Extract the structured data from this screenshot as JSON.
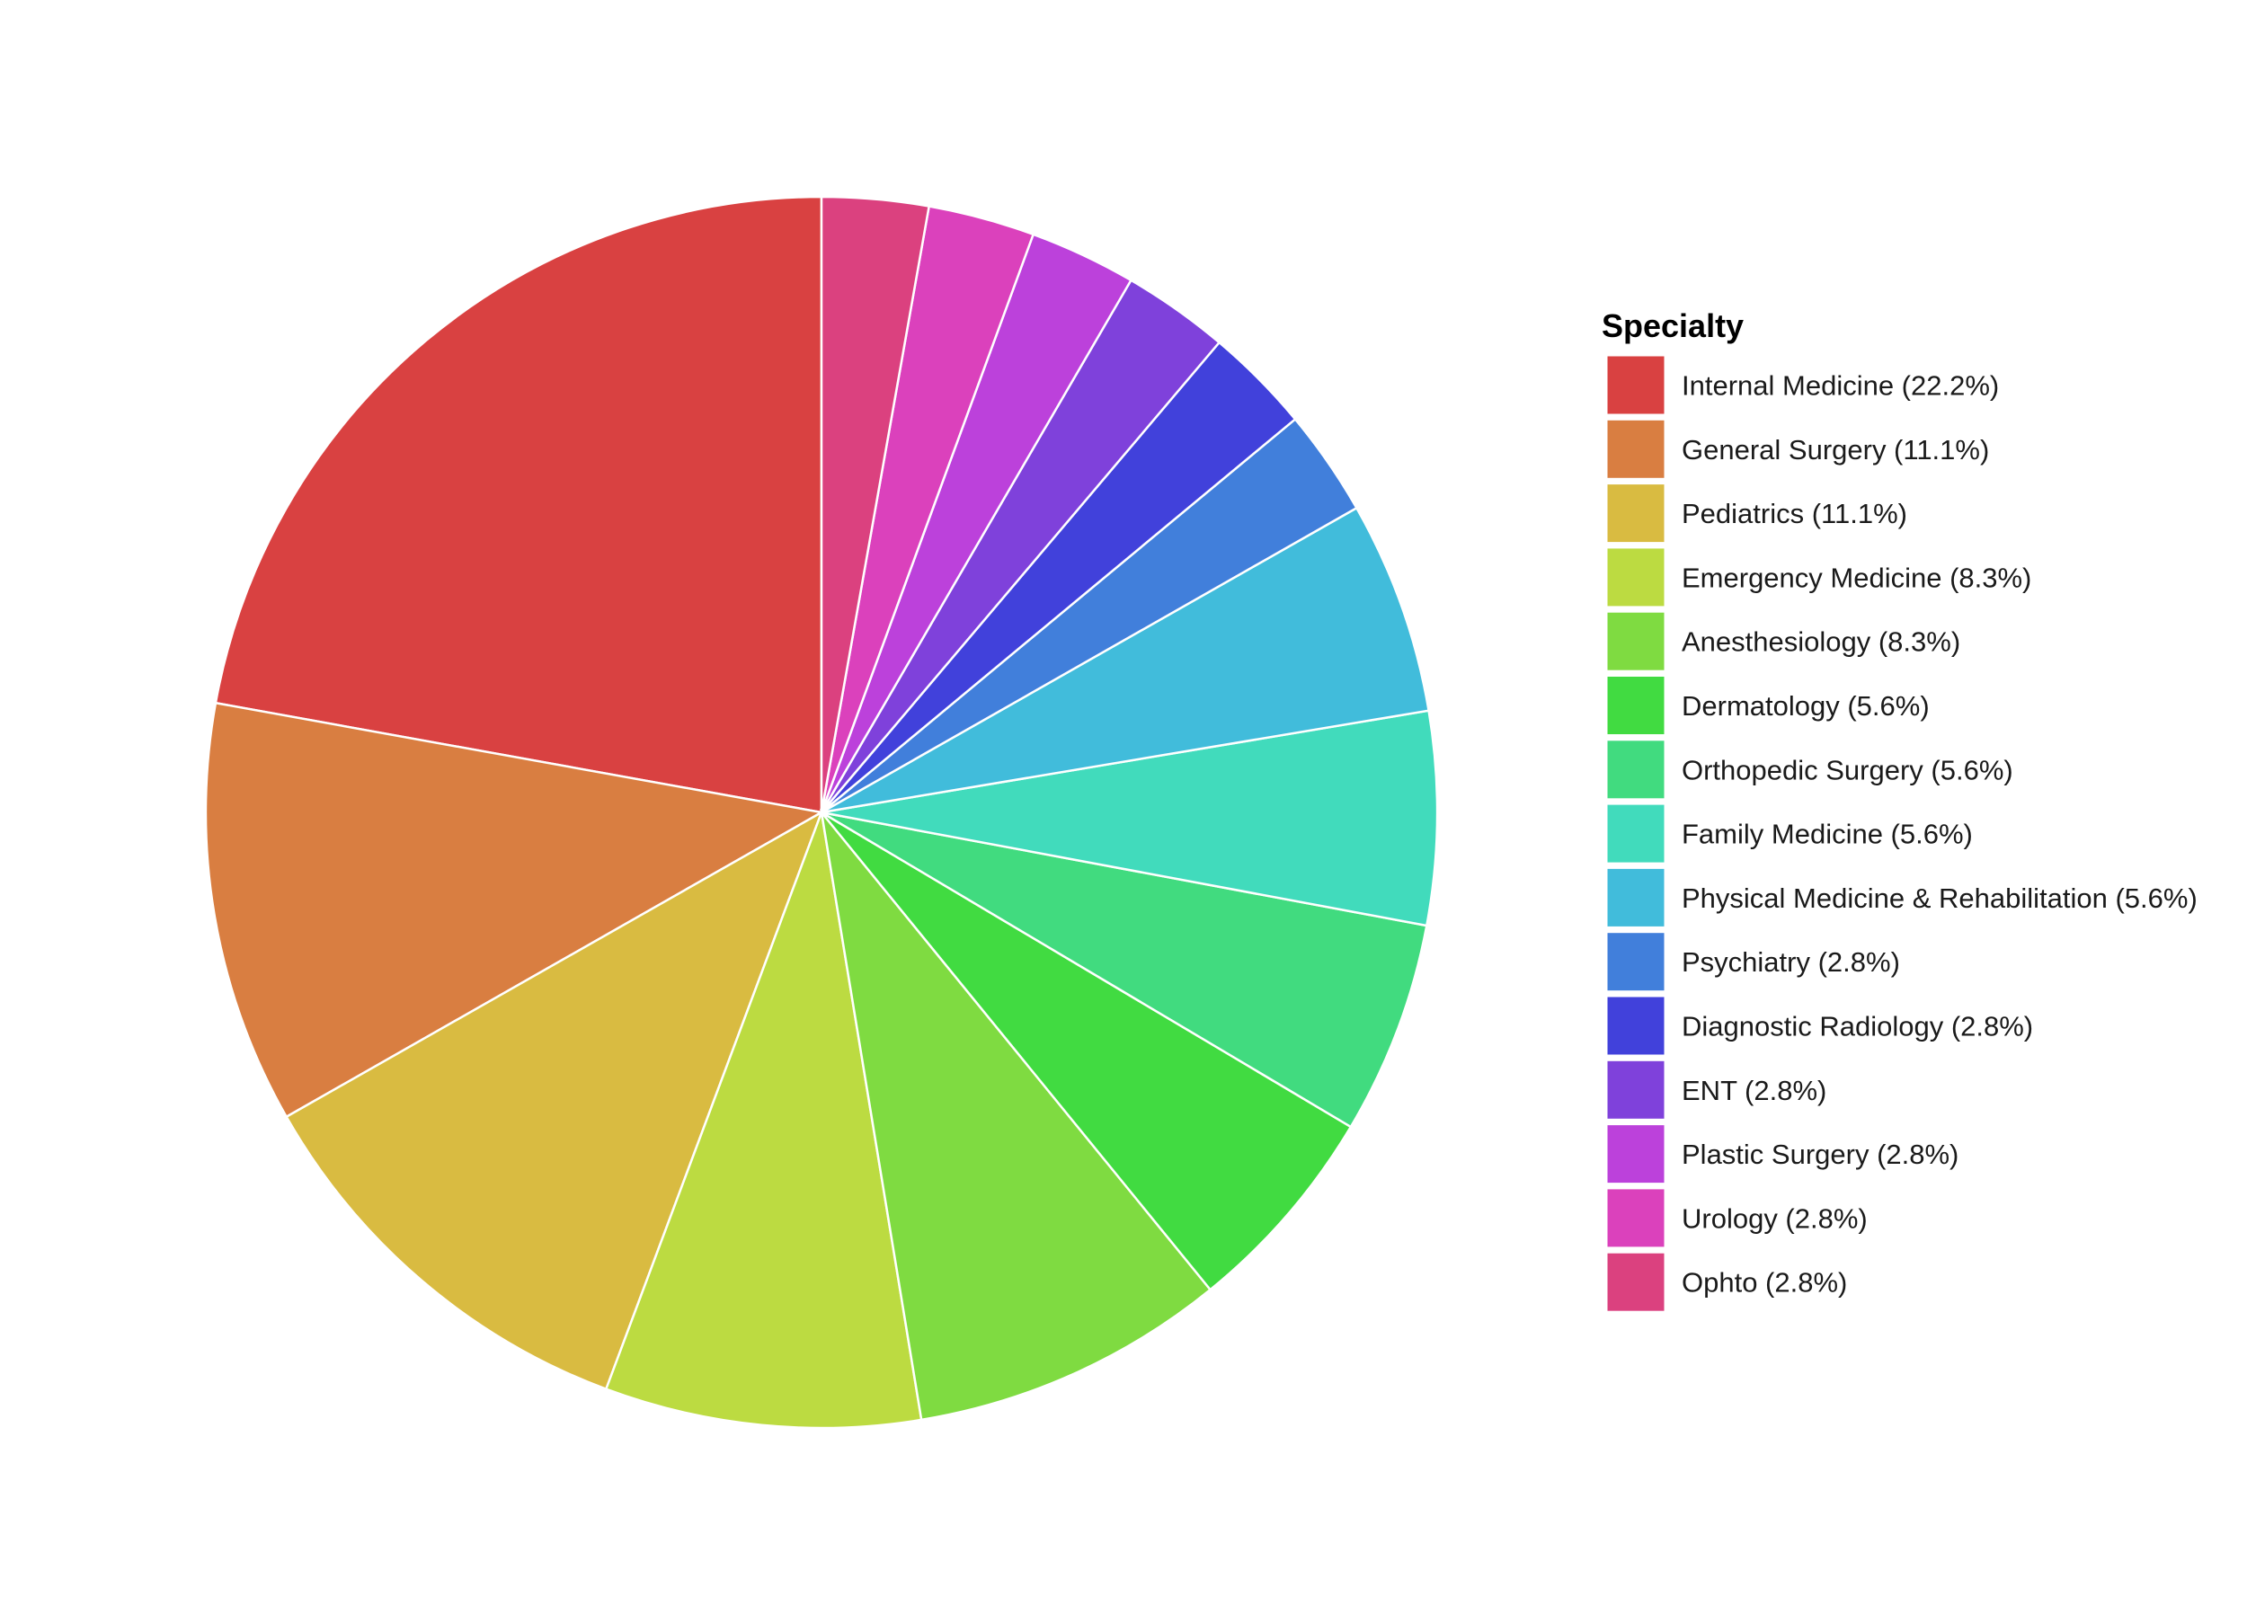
{
  "chart_data": {
    "type": "pie",
    "legend": {
      "title": "Specialty",
      "placement": "right"
    },
    "slices": [
      {
        "label": "Internal Medicine (22.2%)",
        "category": "Internal Medicine",
        "value": 22.2,
        "color": "#d94141"
      },
      {
        "label": "General Surgery (11.1%)",
        "category": "General Surgery",
        "value": 11.1,
        "color": "#d97e41"
      },
      {
        "label": "Pediatrics (11.1%)",
        "category": "Pediatrics",
        "value": 11.1,
        "color": "#d9bb41"
      },
      {
        "label": "Emergency Medicine (8.3%)",
        "category": "Emergency Medicine",
        "value": 8.3,
        "color": "#bcdb41"
      },
      {
        "label": "Anesthesiology (8.3%)",
        "category": "Anesthesiology",
        "value": 8.3,
        "color": "#7fdb41"
      },
      {
        "label": "Dermatology (5.6%)",
        "category": "Dermatology",
        "value": 5.6,
        "color": "#41db41"
      },
      {
        "label": "Orthopedic Surgery (5.6%)",
        "category": "Orthopedic Surgery",
        "value": 5.6,
        "color": "#41db7f"
      },
      {
        "label": "Family Medicine (5.6%)",
        "category": "Family Medicine",
        "value": 5.6,
        "color": "#41dbbc"
      },
      {
        "label": "Physical Medicine & Rehabilitation (5.6%)",
        "category": "Physical Medicine & Rehabilitation",
        "value": 5.6,
        "color": "#41bcdb"
      },
      {
        "label": "Psychiatry (2.8%)",
        "category": "Psychiatry",
        "value": 2.8,
        "color": "#417fdb"
      },
      {
        "label": "Diagnostic Radiology (2.8%)",
        "category": "Diagnostic Radiology",
        "value": 2.8,
        "color": "#4141db"
      },
      {
        "label": "ENT (2.8%)",
        "category": "ENT",
        "value": 2.8,
        "color": "#7f41db"
      },
      {
        "label": "Plastic Surgery (2.8%)",
        "category": "Plastic Surgery",
        "value": 2.8,
        "color": "#bc41db"
      },
      {
        "label": "Urology (2.8%)",
        "category": "Urology",
        "value": 2.8,
        "color": "#db41bc"
      },
      {
        "label": "Ophto (2.8%)",
        "category": "Ophto",
        "value": 2.8,
        "color": "#db417f"
      }
    ],
    "direction": "counterclockwise",
    "start": "top"
  }
}
